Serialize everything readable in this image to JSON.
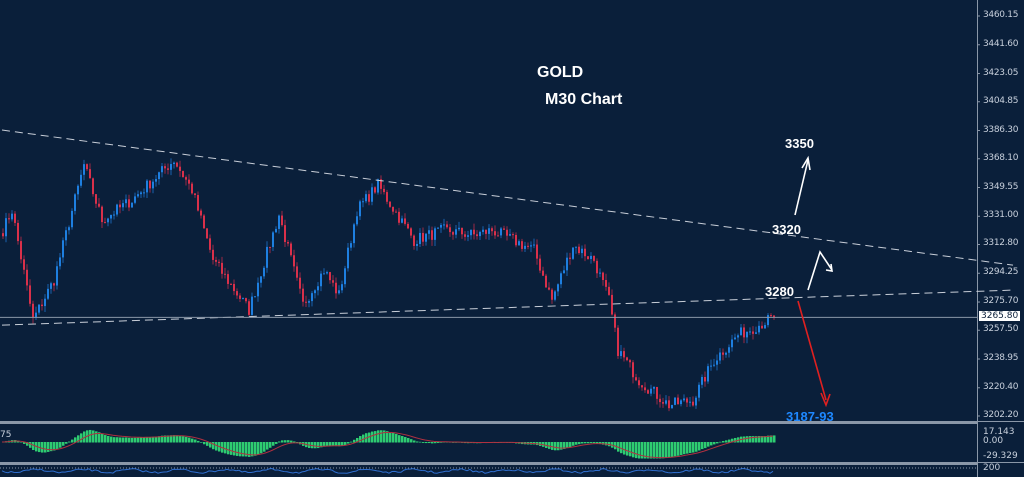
{
  "chart_data": {
    "type": "candlestick",
    "title": "GOLD",
    "subtitle": "M30 Chart",
    "symbol": "GOLD",
    "timeframe": "M30",
    "y_ticks": [
      "3460.15",
      "3441.60",
      "3423.05",
      "3404.85",
      "3386.30",
      "3368.10",
      "3349.55",
      "3331.00",
      "3312.80",
      "3294.25",
      "3275.70",
      "3257.50",
      "3238.95",
      "3220.40",
      "3202.20"
    ],
    "ylim": [
      3195.0,
      3470.0
    ],
    "current_price": "3265.80",
    "close_waypoints": [
      [
        0,
        3322.1
      ],
      [
        3,
        3335.0
      ],
      [
        10,
        3264.1
      ],
      [
        17,
        3289.9
      ],
      [
        27,
        3364.0
      ],
      [
        33,
        3328.6
      ],
      [
        43,
        3341.5
      ],
      [
        57,
        3367.3
      ],
      [
        63,
        3347.9
      ],
      [
        70,
        3302.8
      ],
      [
        82,
        3270.5
      ],
      [
        92,
        3331.8
      ],
      [
        100,
        3273.8
      ],
      [
        107,
        3296.3
      ],
      [
        112,
        3280.2
      ],
      [
        118,
        3335.0
      ],
      [
        125,
        3351.1
      ],
      [
        137,
        3315.6
      ],
      [
        147,
        3322.1
      ],
      [
        157,
        3318.9
      ],
      [
        163,
        3322.0
      ],
      [
        177,
        3309.2
      ],
      [
        183,
        3277.0
      ],
      [
        190,
        3312.4
      ],
      [
        197,
        3302.8
      ],
      [
        202,
        3277.0
      ],
      [
        205,
        3244.7
      ],
      [
        212,
        3225.4
      ],
      [
        222,
        3209.3
      ],
      [
        230,
        3212.5
      ],
      [
        237,
        3238.3
      ],
      [
        245,
        3254.4
      ],
      [
        257,
        3265.8
      ]
    ],
    "trendlines": [
      {
        "name": "upper",
        "from": [
          0,
          3386.6
        ],
        "to": [
          337,
          3299.5
        ],
        "style": "dashed"
      },
      {
        "name": "lower",
        "from": [
          0,
          3260.8
        ],
        "to": [
          337,
          3283.4
        ],
        "style": "dashed"
      }
    ],
    "annotations": {
      "target_up": "3350",
      "resistance": "3320",
      "pivot": "3280",
      "target_down": "3187-93"
    },
    "colors": {
      "background": "#0a1f3a",
      "bull": "#1e7fe0",
      "bear": "#d9304a",
      "histogram": "#2ecc71",
      "signal": "#b03040",
      "rsi": "#2f6fd0",
      "target_down": "#1e88ff",
      "arrow_down": "#e02020"
    },
    "indicator": {
      "type": "macd",
      "left_label": "75",
      "ticks": [
        "17.143",
        "0.00",
        "-29.329"
      ]
    },
    "indicator2": {
      "type": "line",
      "tick": "200"
    }
  }
}
